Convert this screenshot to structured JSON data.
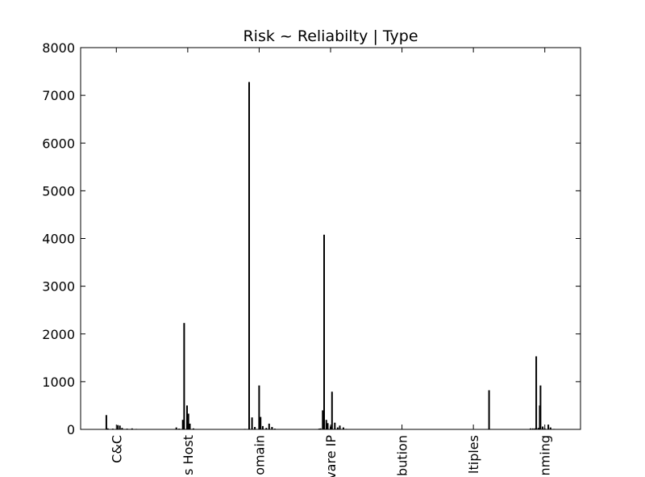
{
  "chart_data": {
    "type": "bar",
    "title": "Risk ~ Reliabilty | Type",
    "xlabel": "",
    "ylabel": "",
    "ylim": [
      0,
      8000
    ],
    "yticks": [
      0,
      1000,
      2000,
      3000,
      4000,
      5000,
      6000,
      7000,
      8000
    ],
    "grid": false,
    "categories": [
      "C&C",
      "s Host",
      "omain",
      "vare IP",
      "bution",
      "ltiples",
      "nming"
    ],
    "bar_color": "#000000",
    "groups": [
      {
        "category": "C&C",
        "bars": [
          {
            "x": 0.36,
            "value": 300
          },
          {
            "x": 0.38,
            "value": 20
          },
          {
            "x": 0.45,
            "value": 15
          },
          {
            "x": 0.52,
            "value": 90
          },
          {
            "x": 0.55,
            "value": 80
          },
          {
            "x": 0.58,
            "value": 30
          },
          {
            "x": 0.65,
            "value": 15
          },
          {
            "x": 0.72,
            "value": 20
          },
          {
            "x": 0.78,
            "value": 10
          }
        ]
      },
      {
        "category": "s Host",
        "bars": [
          {
            "x": 1.34,
            "value": 40
          },
          {
            "x": 1.38,
            "value": 15
          },
          {
            "x": 1.43,
            "value": 200
          },
          {
            "x": 1.45,
            "value": 2230
          },
          {
            "x": 1.49,
            "value": 500
          },
          {
            "x": 1.51,
            "value": 330
          },
          {
            "x": 1.53,
            "value": 120
          },
          {
            "x": 1.58,
            "value": 20
          },
          {
            "x": 1.63,
            "value": 8
          }
        ]
      },
      {
        "category": "omain",
        "bars": [
          {
            "x": 2.3,
            "value": 10
          },
          {
            "x": 2.36,
            "value": 7280
          },
          {
            "x": 2.4,
            "value": 250
          },
          {
            "x": 2.44,
            "value": 50
          },
          {
            "x": 2.5,
            "value": 920
          },
          {
            "x": 2.52,
            "value": 260
          },
          {
            "x": 2.55,
            "value": 70
          },
          {
            "x": 2.6,
            "value": 30
          },
          {
            "x": 2.64,
            "value": 120
          },
          {
            "x": 2.68,
            "value": 50
          },
          {
            "x": 2.72,
            "value": 15
          }
        ]
      },
      {
        "category": "vare IP",
        "bars": [
          {
            "x": 3.34,
            "value": 15
          },
          {
            "x": 3.36,
            "value": 20
          },
          {
            "x": 3.39,
            "value": 400
          },
          {
            "x": 3.41,
            "value": 4080
          },
          {
            "x": 3.44,
            "value": 200
          },
          {
            "x": 3.46,
            "value": 130
          },
          {
            "x": 3.5,
            "value": 60
          },
          {
            "x": 3.52,
            "value": 790
          },
          {
            "x": 3.56,
            "value": 140
          },
          {
            "x": 3.6,
            "value": 40
          },
          {
            "x": 3.63,
            "value": 80
          },
          {
            "x": 3.68,
            "value": 40
          },
          {
            "x": 3.72,
            "value": 10
          }
        ]
      },
      {
        "category": "bution",
        "bars": [
          {
            "x": 4.3,
            "value": 5
          },
          {
            "x": 4.5,
            "value": 5
          },
          {
            "x": 4.7,
            "value": 5
          }
        ]
      },
      {
        "category": "ltiples",
        "bars": [
          {
            "x": 5.3,
            "value": 5
          },
          {
            "x": 5.6,
            "value": 5
          },
          {
            "x": 5.72,
            "value": 820
          }
        ]
      },
      {
        "category": "nming",
        "bars": [
          {
            "x": 6.3,
            "value": 20
          },
          {
            "x": 6.33,
            "value": 20
          },
          {
            "x": 6.36,
            "value": 20
          },
          {
            "x": 6.38,
            "value": 1530
          },
          {
            "x": 6.41,
            "value": 30
          },
          {
            "x": 6.43,
            "value": 500
          },
          {
            "x": 6.44,
            "value": 920
          },
          {
            "x": 6.47,
            "value": 60
          },
          {
            "x": 6.5,
            "value": 20
          },
          {
            "x": 6.55,
            "value": 100
          },
          {
            "x": 6.58,
            "value": 40
          },
          {
            "x": 6.63,
            "value": 10
          }
        ]
      }
    ]
  }
}
